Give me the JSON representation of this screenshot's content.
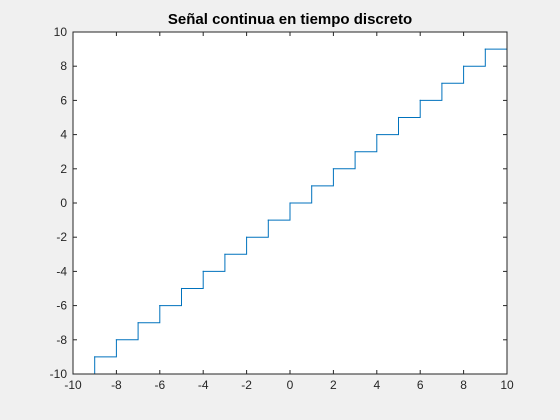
{
  "chart_data": {
    "type": "line",
    "step": true,
    "title": "Señal continua en tiempo discreto",
    "xlabel": "",
    "ylabel": "",
    "xlim": [
      -10,
      10
    ],
    "ylim": [
      -10,
      10
    ],
    "x_ticks": [
      -10,
      -8,
      -6,
      -4,
      -2,
      0,
      2,
      4,
      6,
      8,
      10
    ],
    "y_ticks": [
      -10,
      -8,
      -6,
      -4,
      -2,
      0,
      2,
      4,
      6,
      8,
      10
    ],
    "x_tick_labels": [
      "-10",
      "-8",
      "-6",
      "-4",
      "-2",
      "0",
      "2",
      "4",
      "6",
      "8",
      "10"
    ],
    "y_tick_labels": [
      "-10",
      "-8",
      "-6",
      "-4",
      "-2",
      "0",
      "2",
      "4",
      "6",
      "8",
      "10"
    ],
    "grid": false,
    "line_color": "#0072bd",
    "series": [
      {
        "x": [
          -10,
          -9,
          -8,
          -7,
          -6,
          -5,
          -4,
          -3,
          -2,
          -1,
          0,
          1,
          2,
          3,
          4,
          5,
          6,
          7,
          8,
          9,
          10
        ],
        "values": [
          -10,
          -9,
          -8,
          -7,
          -6,
          -5,
          -4,
          -3,
          -2,
          -1,
          0,
          1,
          2,
          3,
          4,
          5,
          6,
          7,
          8,
          9,
          10
        ]
      }
    ]
  }
}
